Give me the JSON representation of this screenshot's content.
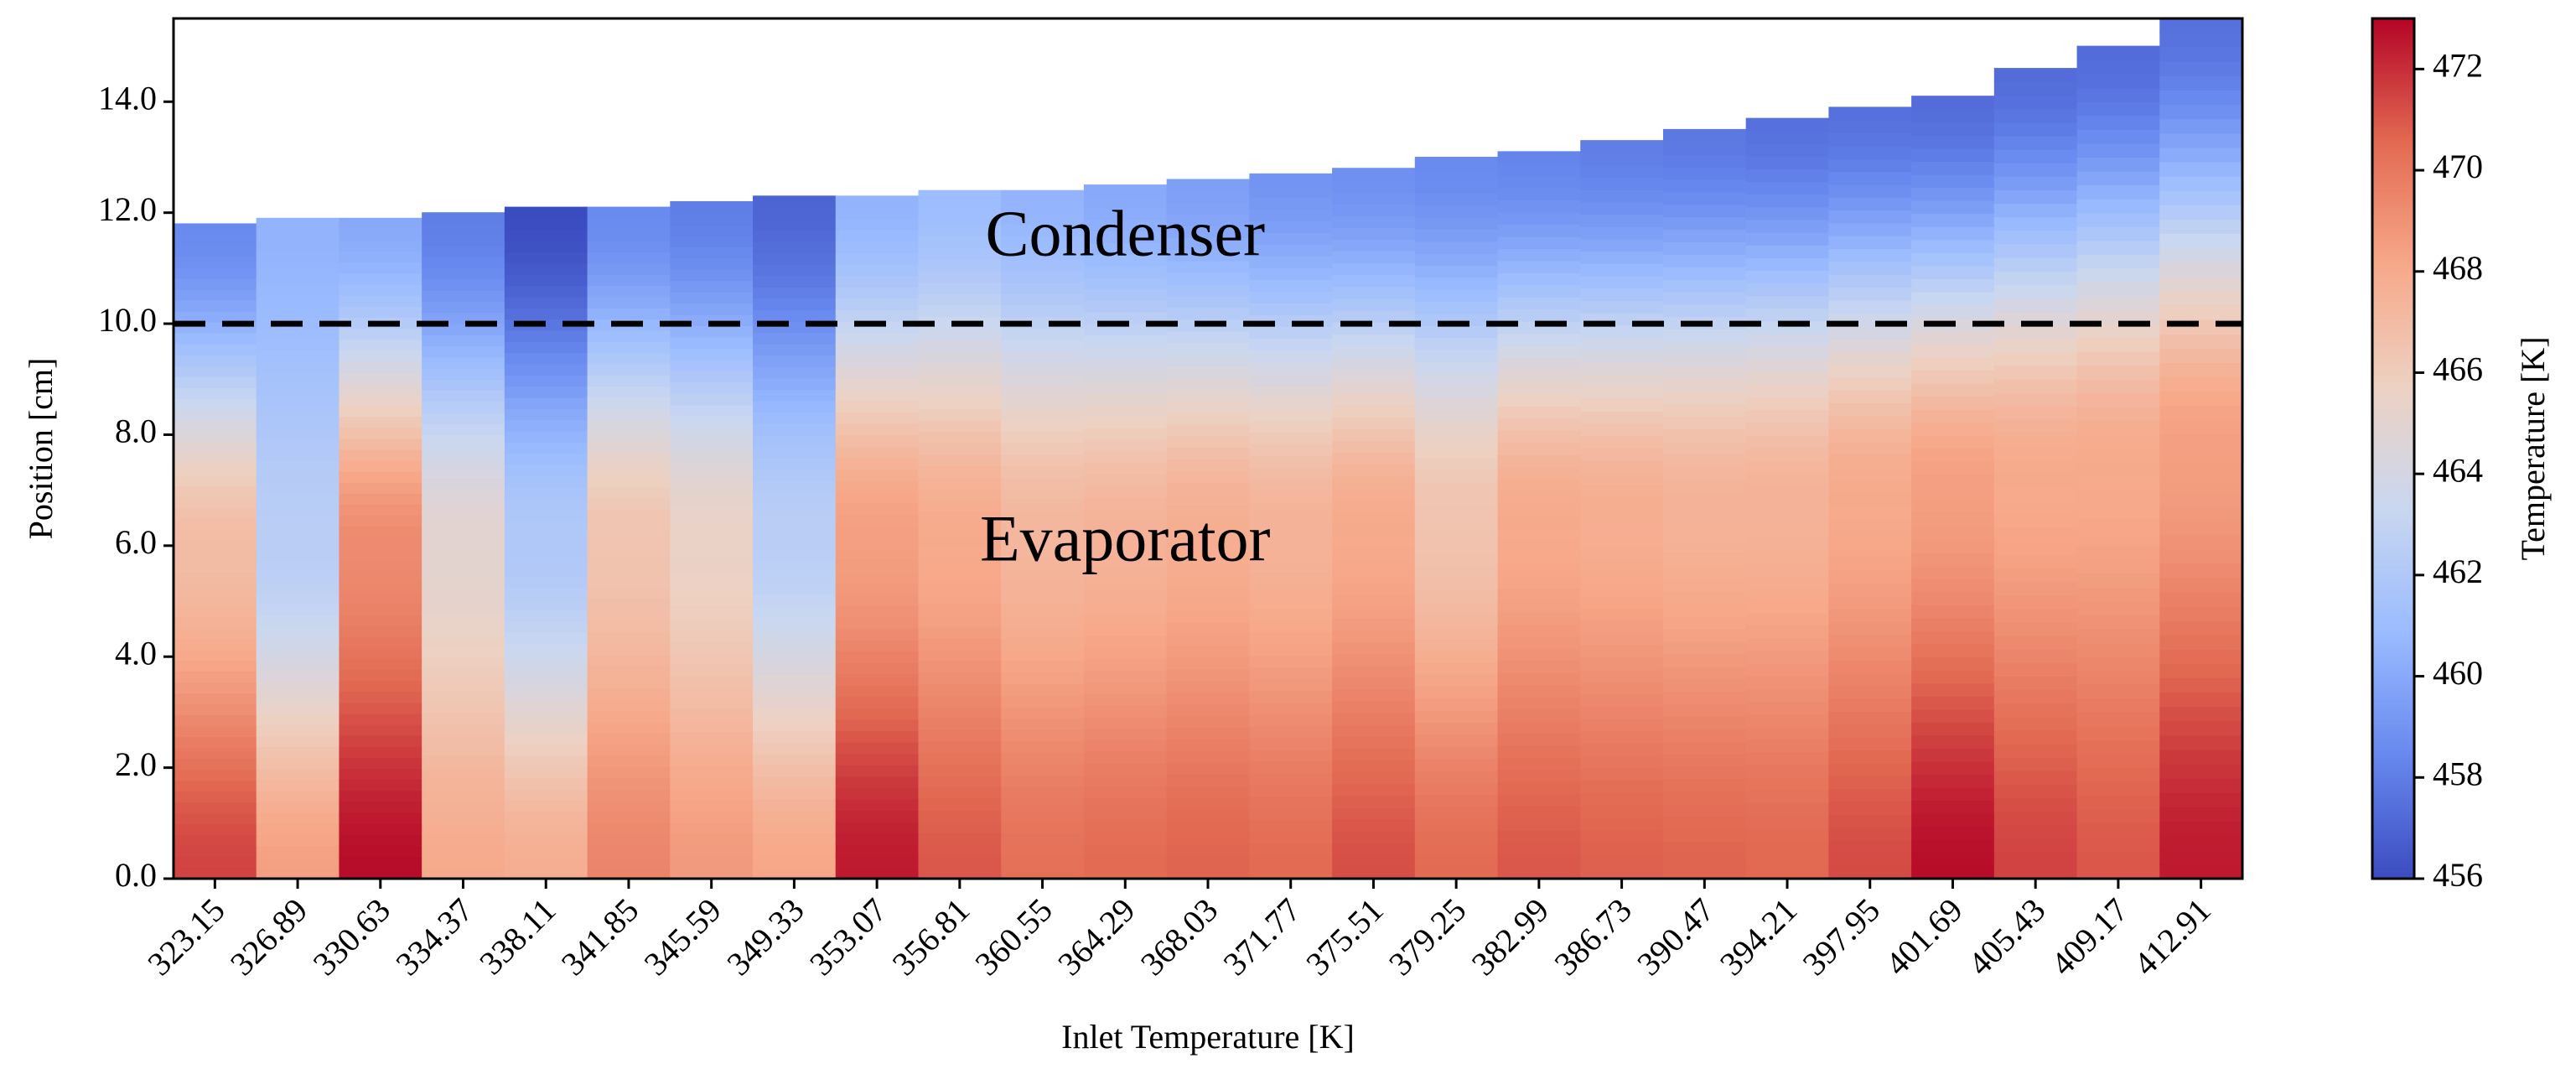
{
  "chart_data": {
    "type": "heatmap",
    "title": "",
    "xlabel": "Inlet Temperature [K]",
    "ylabel": "Position [cm]",
    "colorbar_label": "Temperature [K]",
    "colormap": "coolwarm",
    "colormap_stops": [
      "#3b4cc0",
      "#6788ee",
      "#9abbff",
      "#c9d7f0",
      "#edd1c2",
      "#f7a889",
      "#e26952",
      "#b40426"
    ],
    "color_range": [
      456,
      473
    ],
    "colorbar_ticks": [
      "456",
      "458",
      "460",
      "462",
      "464",
      "466",
      "468",
      "470",
      "472"
    ],
    "x_categories": [
      "323.15",
      "326.89",
      "330.63",
      "334.37",
      "338.11",
      "341.85",
      "345.59",
      "349.33",
      "353.07",
      "356.81",
      "360.55",
      "364.29",
      "368.03",
      "371.77",
      "375.51",
      "379.25",
      "382.99",
      "386.73",
      "390.47",
      "394.21",
      "397.95",
      "401.69",
      "405.43",
      "409.17",
      "412.91"
    ],
    "y_ticks": [
      "0.0",
      "2.0",
      "4.0",
      "6.0",
      "8.0",
      "10.0",
      "12.0",
      "14.0"
    ],
    "ylim": [
      0,
      15.5
    ],
    "column_top_positions": [
      11.8,
      11.9,
      11.9,
      12.0,
      12.1,
      12.1,
      12.2,
      12.3,
      12.3,
      12.4,
      12.4,
      12.5,
      12.6,
      12.7,
      12.8,
      13.0,
      13.1,
      13.3,
      13.5,
      13.7,
      13.9,
      14.1,
      14.6,
      15.0,
      15.5
    ],
    "column_bottom_temperatures": [
      471.5,
      468.5,
      472.8,
      468.0,
      467.8,
      469.5,
      468.7,
      468.2,
      472.5,
      471.0,
      470.3,
      470.5,
      470.7,
      470.5,
      471.2,
      470.5,
      471.0,
      470.8,
      470.7,
      470.6,
      471.3,
      472.8,
      471.5,
      471.0,
      472.5
    ],
    "column_mid_temperatures": [
      467.0,
      462.5,
      469.3,
      465.0,
      462.0,
      466.5,
      465.5,
      462.5,
      468.5,
      468.0,
      467.3,
      467.5,
      467.8,
      467.5,
      468.0,
      466.5,
      468.0,
      467.8,
      467.5,
      467.5,
      468.0,
      468.5,
      468.0,
      468.0,
      468.5
    ],
    "column_top_temperatures": [
      458.5,
      460.5,
      460.0,
      458.0,
      456.0,
      458.5,
      458.0,
      457.0,
      460.5,
      461.0,
      460.5,
      460.0,
      459.5,
      459.0,
      458.8,
      458.5,
      458.3,
      458.0,
      457.8,
      457.5,
      457.5,
      457.3,
      457.3,
      457.3,
      457.5
    ],
    "reference_line_y": 10.0,
    "annotations": [
      {
        "text": "Condenser",
        "x_category": "364.29",
        "y": 11.5
      },
      {
        "text": "Evaporator",
        "x_category": "364.29",
        "y": 6.0
      }
    ]
  }
}
